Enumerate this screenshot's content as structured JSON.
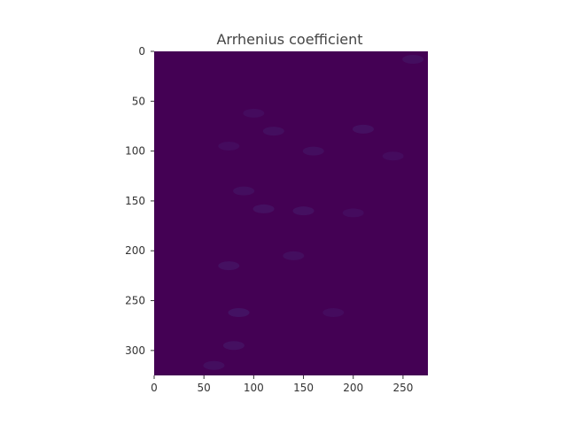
{
  "chart_data": {
    "type": "heatmap",
    "title": "Arrhenius coefficient",
    "xlabel": "",
    "ylabel": "",
    "xlim": [
      0,
      275
    ],
    "ylim": [
      0,
      325
    ],
    "y_inverted": true,
    "xticks": [
      0,
      50,
      100,
      150,
      200,
      250
    ],
    "yticks": [
      0,
      50,
      100,
      150,
      200,
      250,
      300
    ],
    "colormap": "viridis",
    "background_value_color": "#440154",
    "feature_color": "#472d7b",
    "grid": false,
    "colorbar": false,
    "features": [
      {
        "x": 260,
        "y": 8,
        "intensity": 0.3
      },
      {
        "x": 100,
        "y": 62,
        "intensity": 0.25
      },
      {
        "x": 120,
        "y": 80,
        "intensity": 0.3
      },
      {
        "x": 210,
        "y": 78,
        "intensity": 0.35
      },
      {
        "x": 160,
        "y": 100,
        "intensity": 0.3
      },
      {
        "x": 75,
        "y": 95,
        "intensity": 0.25
      },
      {
        "x": 240,
        "y": 105,
        "intensity": 0.25
      },
      {
        "x": 90,
        "y": 140,
        "intensity": 0.3
      },
      {
        "x": 110,
        "y": 158,
        "intensity": 0.35
      },
      {
        "x": 150,
        "y": 160,
        "intensity": 0.35
      },
      {
        "x": 200,
        "y": 162,
        "intensity": 0.25
      },
      {
        "x": 140,
        "y": 205,
        "intensity": 0.3
      },
      {
        "x": 75,
        "y": 215,
        "intensity": 0.35
      },
      {
        "x": 85,
        "y": 262,
        "intensity": 0.4
      },
      {
        "x": 180,
        "y": 262,
        "intensity": 0.25
      },
      {
        "x": 80,
        "y": 295,
        "intensity": 0.35
      },
      {
        "x": 60,
        "y": 315,
        "intensity": 0.3
      }
    ]
  }
}
